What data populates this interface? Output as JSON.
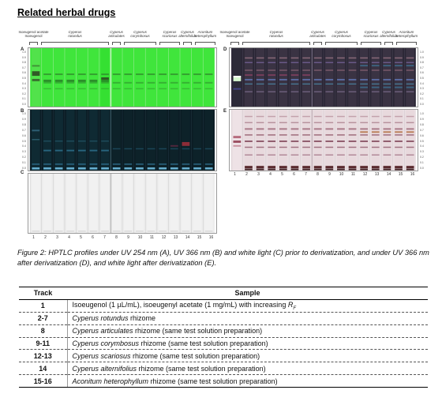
{
  "heading": "Related herbal drugs",
  "left_header": {
    "groups": [
      {
        "label": "Isoeugenol acetate\nIsoeugenol",
        "italic": false
      },
      {
        "label": "Cyperus\nrotundus",
        "italic": true
      },
      {
        "label": "Cyperus\narticulates",
        "italic": true
      },
      {
        "label": "Cyperus\ncorymbosus",
        "italic": true
      },
      {
        "label": "Cyperus\nscariosus",
        "italic": true
      },
      {
        "label": "Cyperus\nalternifolius",
        "italic": true
      },
      {
        "label": "Aconitum\nheterophyllum",
        "italic": true
      }
    ]
  },
  "right_header": {
    "groups": [
      {
        "label": "Isoeugenol acetate\nIsoeugenol",
        "italic": false
      },
      {
        "label": "Cyperus\nrotundus",
        "italic": true
      },
      {
        "label": "Cyperus\narticulates",
        "italic": true
      },
      {
        "label": "Cyperus\ncorymbosus",
        "italic": true
      },
      {
        "label": "Cyperus\nscariosus",
        "italic": true
      },
      {
        "label": "Cyperus\nalternifolius",
        "italic": true
      },
      {
        "label": "Aconitum\nheterophyllum",
        "italic": true
      }
    ]
  },
  "panels": {
    "A": {
      "letter": "A",
      "theme": "uv254"
    },
    "B": {
      "letter": "B",
      "theme": "uv366"
    },
    "C": {
      "letter": "C",
      "theme": "white"
    },
    "D": {
      "letter": "D",
      "theme": "uv366_deriv"
    },
    "E": {
      "letter": "E",
      "theme": "white_deriv"
    }
  },
  "rf_ticks": [
    "1.0",
    "0.9",
    "0.8",
    "0.7",
    "0.6",
    "0.5",
    "0.4",
    "0.3",
    "0.2",
    "0.1",
    "0.0"
  ],
  "track_numbers": [
    "1",
    "2",
    "3",
    "4",
    "5",
    "6",
    "7",
    "8",
    "9",
    "10",
    "11",
    "12",
    "13",
    "14",
    "15",
    "16"
  ],
  "caption": "Figure 2: HPTLC profiles under UV 254 nm (A), UV 366 nm (B) and white light (C) prior to derivatization, and under UV 366 nm after derivatization (D), and white light after derivatization (E).",
  "table": {
    "headers": {
      "track": "Track",
      "sample": "Sample"
    },
    "rows": [
      {
        "track": "1",
        "pre": "Isoeugenol (1 µL/mL), isoeugenyl acetate (1 mg/mL) with increasing ",
        "ital": "",
        "post": "",
        "rf_label": "R",
        "rf_sub": "F"
      },
      {
        "track": "2-7",
        "pre": "",
        "ital": "Cyperus rotundus",
        "post": " rhizome"
      },
      {
        "track": "8",
        "pre": "",
        "ital": "Cyperus articulates",
        "post": " rhizome (same test solution preparation)"
      },
      {
        "track": "9-11",
        "pre": "",
        "ital": "Cyperus corymbosus",
        "post": " rhizome (same test solution preparation)"
      },
      {
        "track": "12-13",
        "pre": "",
        "ital": "Cyperus scariosus",
        "post": " rhizome (same test solution preparation)"
      },
      {
        "track": "14",
        "pre": "",
        "ital": "Cyperus alternifolius",
        "post": " rhizome (same test solution preparation)"
      },
      {
        "track": "15-16",
        "pre": "",
        "ital": "Aconitum heterophyllum",
        "post": " rhizome (same test solution preparation)"
      }
    ]
  },
  "colors": {
    "uv254_bg": "#3ee63a",
    "uv366_bg": "#0b1c24",
    "white_bg": "#ececec",
    "deriv366_bg": "#2a2635",
    "derivwhite_bg": "#e9dfe2"
  }
}
